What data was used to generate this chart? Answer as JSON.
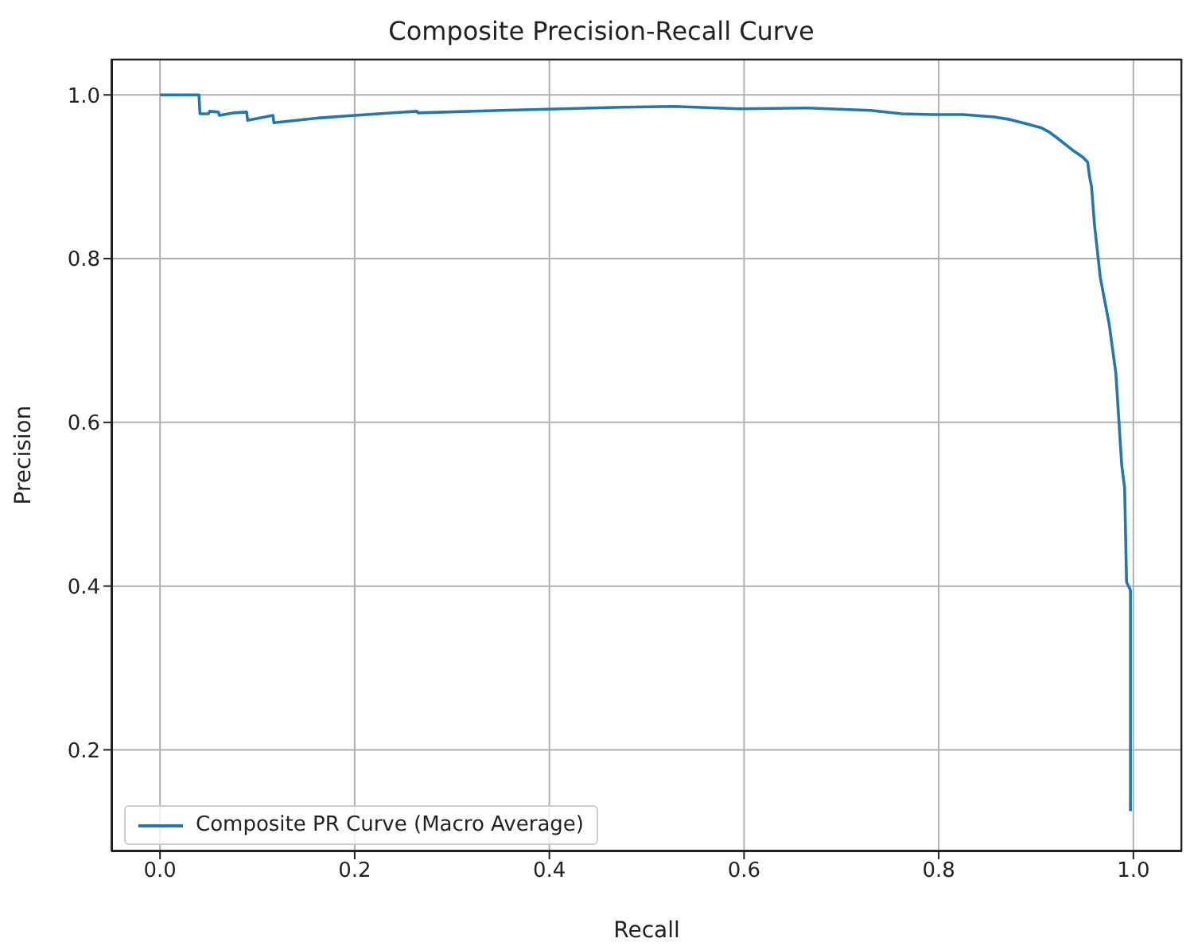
{
  "chart_data": {
    "type": "line",
    "title": "Composite Precision-Recall Curve",
    "xlabel": "Recall",
    "ylabel": "Precision",
    "xlim": [
      -0.05,
      1.05
    ],
    "xticks": [
      {
        "value": 0,
        "label": "0.0"
      },
      0.2,
      0.4,
      0.6,
      0.8,
      {
        "value": 1,
        "label": "1.0"
      }
    ],
    "ylim": [
      0.076,
      1.044
    ],
    "yticks": [
      0.2,
      0.4,
      0.6,
      0.8,
      {
        "value": 1,
        "label": "1.0"
      }
    ],
    "grid": true,
    "legend": "bottom left",
    "marker": "none",
    "line_style": "solid",
    "series": [
      {
        "name": "Composite PR Curve (Macro Average)",
        "color": "#1f77b4",
        "x": [
          0,
          0.04,
          0.041,
          0.05,
          0.051,
          0.06,
          0.061,
          0.075,
          0.089,
          0.09,
          0.116,
          0.117,
          0.165,
          0.2,
          0.264,
          0.265,
          0.35,
          0.475,
          0.528,
          0.595,
          0.666,
          0.73,
          0.762,
          0.793,
          0.825,
          0.857,
          0.873,
          0.889,
          0.905,
          0.913,
          0.921,
          0.937,
          0.948,
          0.953,
          0.955,
          0.957,
          0.96,
          0.966,
          0.975,
          0.982,
          0.985,
          0.988,
          0.991,
          0.993,
          0.997,
          0.997
        ],
        "values": [
          1.0,
          1.0,
          0.977,
          0.977,
          0.98,
          0.979,
          0.975,
          0.978,
          0.979,
          0.969,
          0.975,
          0.966,
          0.972,
          0.975,
          0.98,
          0.978,
          0.981,
          0.985,
          0.986,
          0.983,
          0.984,
          0.981,
          0.977,
          0.976,
          0.976,
          0.973,
          0.97,
          0.965,
          0.96,
          0.955,
          0.948,
          0.933,
          0.924,
          0.918,
          0.9,
          0.888,
          0.842,
          0.777,
          0.721,
          0.66,
          0.604,
          0.548,
          0.52,
          0.405,
          0.395,
          0.125
        ]
      }
    ]
  }
}
